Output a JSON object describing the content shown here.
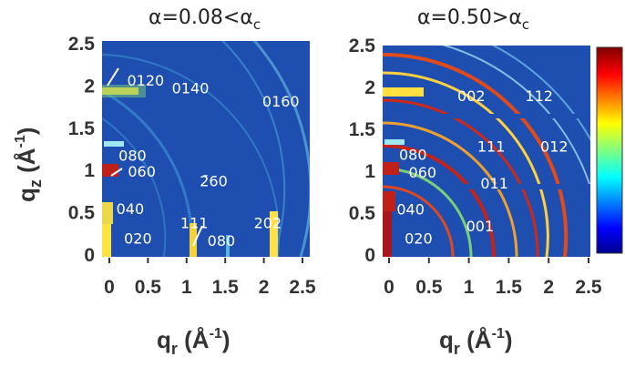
{
  "chart_data": [
    {
      "type": "heatmap",
      "title": "α=0.08<α",
      "title_sub": "c",
      "xlabel": "q",
      "xlabel_sub": "r",
      "xlabel_unit": " (Å",
      "xlabel_exp": "-1",
      "ylabel": "q",
      "ylabel_sub": "z",
      "ylabel_unit": " (Å",
      "ylabel_exp": "-1",
      "xlim": [
        0,
        2.5
      ],
      "ylim": [
        0,
        2.5
      ],
      "x_ticks": [
        "0",
        "0.5",
        "1",
        "1.5",
        "2",
        "2.5"
      ],
      "y_ticks": [
        "0",
        "0.5",
        "1",
        "1.5",
        "2",
        "2.5"
      ],
      "colormap": "jet",
      "background_color": "#1e4fb0",
      "annotations": [
        {
          "text": "0120",
          "x": 0.47,
          "y": 2.07
        },
        {
          "text": "0140",
          "x": 1.05,
          "y": 1.98
        },
        {
          "text": "0160",
          "x": 2.22,
          "y": 1.82
        },
        {
          "text": "080",
          "x": 0.3,
          "y": 1.18
        },
        {
          "text": "060",
          "x": 0.42,
          "y": 0.99
        },
        {
          "text": "2̄60",
          "x": 1.35,
          "y": 0.88
        },
        {
          "text": "040",
          "x": 0.27,
          "y": 0.55
        },
        {
          "text": "111",
          "x": 1.1,
          "y": 0.38
        },
        {
          "text": "202",
          "x": 2.05,
          "y": 0.38
        },
        {
          "text": "020",
          "x": 0.37,
          "y": 0.2
        },
        {
          "text": "080",
          "x": 1.45,
          "y": 0.17
        }
      ]
    },
    {
      "type": "heatmap",
      "title": "α=0.50>α",
      "title_sub": "c",
      "xlabel": "q",
      "xlabel_sub": "r",
      "xlabel_unit": " (Å",
      "xlabel_exp": "-1",
      "ylabel": "",
      "xlim": [
        0,
        2.5
      ],
      "ylim": [
        0,
        2.5
      ],
      "x_ticks": [
        "0",
        "0.5",
        "1",
        "1.5",
        "2",
        "2.5"
      ],
      "y_ticks": [
        "0",
        "0.5",
        "1",
        "1.5",
        "2",
        "2.5"
      ],
      "colormap": "jet",
      "colorbar": true,
      "background_color": "#1e4fb0",
      "annotations": [
        {
          "text": "002",
          "x": 1.03,
          "y": 1.9
        },
        {
          "text": "112",
          "x": 1.88,
          "y": 1.9
        },
        {
          "text": "080",
          "x": 0.3,
          "y": 1.2
        },
        {
          "text": "111",
          "x": 1.28,
          "y": 1.3
        },
        {
          "text": "012",
          "x": 2.07,
          "y": 1.3
        },
        {
          "text": "060",
          "x": 0.42,
          "y": 0.99
        },
        {
          "text": "011",
          "x": 1.32,
          "y": 0.86
        },
        {
          "text": "040",
          "x": 0.27,
          "y": 0.55
        },
        {
          "text": "001",
          "x": 1.14,
          "y": 0.35
        },
        {
          "text": "020",
          "x": 0.37,
          "y": 0.2
        }
      ]
    }
  ]
}
